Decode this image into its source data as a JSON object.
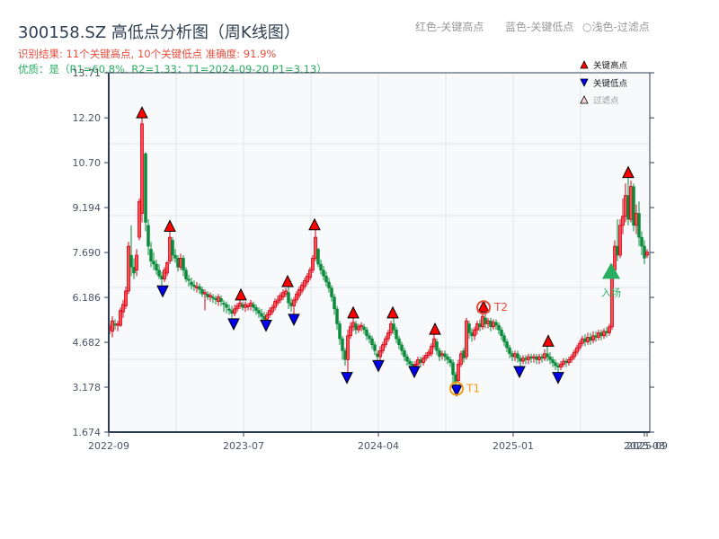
{
  "header": {
    "title": "300158.SZ 高低点分析图（周K线图）",
    "result_line": "识别结果: 11个关键高点, 10个关键低点  准确度: 91.9%",
    "quality_line": "优质：是（R1=60.8%, R2=1.33；T1=2024-09-20 P1=3.13）"
  },
  "top_legend": {
    "red": "红色-关键高点",
    "blue": "蓝色-关键低点",
    "filtered": "○浅色-过滤点"
  },
  "colors": {
    "up": "#d0021b",
    "down": "#0a8a3a",
    "high_marker": "#ff0000",
    "low_marker": "#0000ee",
    "entry": "#27ae60",
    "t1_ring": "#f39c12",
    "t2_ring": "#e74c3c",
    "axis": "#2c3e50",
    "plot_bg": "#f7f9fb",
    "grid": "#e2e6ea"
  },
  "chart_data": {
    "type": "candlestick",
    "title": "300158.SZ 高低点分析图（周K线图）",
    "xlabel": "",
    "ylabel": "",
    "ylim": [
      1.674,
      13.71
    ],
    "yticks": [
      "1.674",
      "3.178",
      "4.682",
      "6.186",
      "7.690",
      "9.194",
      "10.70",
      "12.20",
      "13.71"
    ],
    "xticks": [
      "2022-09",
      "2023-07",
      "2024-04",
      "2025-01",
      "2025-08",
      "2025-09"
    ],
    "grid": true,
    "legend": {
      "position": "top-right",
      "entries": [
        "关键高点",
        "关键低点",
        "过滤点"
      ]
    },
    "key_highs": [
      {
        "x": 158,
        "price": 12.2
      },
      {
        "x": 189,
        "price": 8.4
      },
      {
        "x": 268,
        "price": 6.1
      },
      {
        "x": 320,
        "price": 6.55
      },
      {
        "x": 350,
        "price": 8.45
      },
      {
        "x": 393,
        "price": 5.5
      },
      {
        "x": 437,
        "price": 5.5
      },
      {
        "x": 484,
        "price": 4.95
      },
      {
        "x": 538,
        "price": 5.7
      },
      {
        "x": 610,
        "price": 4.55
      },
      {
        "x": 699,
        "price": 10.2
      }
    ],
    "key_lows": [
      {
        "x": 181,
        "price": 6.45
      },
      {
        "x": 260,
        "price": 5.35
      },
      {
        "x": 296,
        "price": 5.3
      },
      {
        "x": 327,
        "price": 5.5
      },
      {
        "x": 386,
        "price": 3.55
      },
      {
        "x": 421,
        "price": 3.95
      },
      {
        "x": 461,
        "price": 3.75
      },
      {
        "x": 508,
        "price": 3.13
      },
      {
        "x": 578,
        "price": 3.75
      },
      {
        "x": 621,
        "price": 3.55
      }
    ],
    "annotations": [
      {
        "label": "T1",
        "x": 508,
        "price": 3.13,
        "text": "T1=2024-09-20 P1=3.13"
      },
      {
        "label": "T2",
        "x": 538,
        "price": 5.7
      },
      {
        "label": "入场",
        "x": 680,
        "price": 7.05
      }
    ],
    "candles_note": "approximate weekly OHLC read from pixels (x pixel position, open, close, low, high)",
    "candles": [
      [
        122,
        5.1,
        5.2,
        4.95,
        5.3
      ],
      [
        125,
        5.05,
        5.4,
        4.85,
        5.55
      ],
      [
        128,
        5.3,
        5.25,
        5.1,
        5.45
      ],
      [
        131,
        5.25,
        5.3,
        5.05,
        5.4
      ],
      [
        134,
        5.25,
        5.75,
        5.2,
        5.85
      ],
      [
        137,
        5.7,
        5.95,
        5.5,
        6.1
      ],
      [
        140,
        5.9,
        6.4,
        5.8,
        6.55
      ],
      [
        143,
        6.4,
        7.9,
        6.3,
        8.05
      ],
      [
        146,
        7.6,
        7.2,
        6.9,
        8.6
      ],
      [
        149,
        7.2,
        7.0,
        6.8,
        7.5
      ],
      [
        152,
        7.1,
        7.6,
        6.9,
        7.8
      ],
      [
        155,
        8.2,
        9.4,
        8.1,
        9.5
      ],
      [
        158,
        9.0,
        12.0,
        8.7,
        12.2
      ],
      [
        162,
        11.0,
        8.7,
        8.4,
        11.05
      ],
      [
        165,
        8.6,
        7.9,
        7.6,
        8.8
      ],
      [
        168,
        7.8,
        7.4,
        7.2,
        8.05
      ],
      [
        171,
        7.4,
        7.3,
        7.1,
        7.7
      ],
      [
        174,
        7.3,
        7.1,
        6.95,
        7.45
      ],
      [
        177,
        7.1,
        6.9,
        6.8,
        7.3
      ],
      [
        180,
        6.9,
        6.8,
        6.55,
        7.05
      ],
      [
        183,
        6.8,
        7.1,
        6.7,
        7.2
      ],
      [
        186,
        7.0,
        7.35,
        6.9,
        7.4
      ],
      [
        189,
        7.4,
        8.2,
        7.3,
        8.4
      ],
      [
        192,
        8.1,
        7.6,
        7.4,
        8.2
      ],
      [
        195,
        7.6,
        7.5,
        7.35,
        7.8
      ],
      [
        198,
        7.5,
        7.2,
        7.05,
        7.6
      ],
      [
        201,
        7.2,
        7.5,
        7.1,
        7.65
      ],
      [
        204,
        7.5,
        7.1,
        6.9,
        7.6
      ],
      [
        207,
        7.1,
        6.8,
        6.7,
        7.2
      ],
      [
        210,
        6.8,
        6.75,
        6.55,
        6.95
      ],
      [
        213,
        6.7,
        6.6,
        6.45,
        6.85
      ],
      [
        216,
        6.6,
        6.55,
        6.4,
        6.75
      ],
      [
        219,
        6.5,
        6.55,
        6.35,
        6.7
      ],
      [
        222,
        6.55,
        6.45,
        6.3,
        6.65
      ],
      [
        225,
        6.45,
        6.3,
        6.2,
        6.55
      ],
      [
        228,
        6.3,
        6.35,
        5.75,
        6.45
      ],
      [
        231,
        6.3,
        6.2,
        6.1,
        6.4
      ],
      [
        234,
        6.2,
        6.25,
        6.05,
        6.35
      ],
      [
        237,
        6.2,
        6.15,
        6.0,
        6.3
      ],
      [
        240,
        6.15,
        6.1,
        5.95,
        6.25
      ],
      [
        243,
        6.05,
        6.2,
        5.9,
        6.3
      ],
      [
        246,
        6.15,
        6.05,
        5.9,
        6.25
      ],
      [
        249,
        6.0,
        5.95,
        5.7,
        6.1
      ],
      [
        252,
        5.95,
        5.85,
        5.65,
        6.05
      ],
      [
        255,
        5.8,
        5.75,
        5.6,
        5.95
      ],
      [
        258,
        5.75,
        5.65,
        5.5,
        5.9
      ],
      [
        261,
        5.65,
        5.8,
        5.55,
        5.95
      ],
      [
        264,
        5.8,
        5.9,
        5.7,
        6.0
      ],
      [
        267,
        5.9,
        6.0,
        5.8,
        6.1
      ],
      [
        270,
        5.95,
        5.85,
        5.75,
        6.05
      ],
      [
        273,
        5.85,
        5.95,
        5.7,
        6.05
      ],
      [
        276,
        5.9,
        5.9,
        5.75,
        6.0
      ],
      [
        279,
        5.9,
        6.0,
        5.75,
        6.1
      ],
      [
        282,
        5.95,
        5.85,
        5.7,
        6.05
      ],
      [
        285,
        5.85,
        5.75,
        5.6,
        5.95
      ],
      [
        288,
        5.75,
        5.65,
        5.5,
        5.85
      ],
      [
        291,
        5.65,
        5.55,
        5.4,
        5.8
      ],
      [
        294,
        5.55,
        5.45,
        5.3,
        5.7
      ],
      [
        297,
        5.45,
        5.6,
        5.35,
        5.7
      ],
      [
        300,
        5.6,
        5.75,
        5.5,
        5.85
      ],
      [
        303,
        5.7,
        5.85,
        5.6,
        5.95
      ],
      [
        306,
        5.85,
        6.05,
        5.75,
        6.15
      ],
      [
        309,
        6.0,
        6.1,
        5.9,
        6.25
      ],
      [
        312,
        6.1,
        6.25,
        6.0,
        6.35
      ],
      [
        315,
        6.2,
        6.35,
        6.1,
        6.45
      ],
      [
        318,
        6.3,
        6.4,
        6.2,
        6.5
      ],
      [
        321,
        6.35,
        6.0,
        5.8,
        6.55
      ],
      [
        324,
        6.0,
        5.9,
        5.7,
        6.15
      ],
      [
        327,
        5.9,
        6.1,
        5.5,
        6.2
      ],
      [
        330,
        6.1,
        6.3,
        6.0,
        6.4
      ],
      [
        333,
        6.25,
        6.45,
        6.15,
        6.55
      ],
      [
        336,
        6.4,
        6.6,
        6.3,
        6.7
      ],
      [
        339,
        6.55,
        6.75,
        6.45,
        6.85
      ],
      [
        342,
        6.7,
        6.9,
        6.6,
        7.0
      ],
      [
        345,
        6.85,
        7.1,
        6.75,
        7.2
      ],
      [
        348,
        7.1,
        7.5,
        7.0,
        7.6
      ],
      [
        351,
        7.5,
        8.2,
        7.4,
        8.45
      ],
      [
        354,
        7.8,
        7.3,
        7.2,
        7.85
      ],
      [
        357,
        7.3,
        7.1,
        6.95,
        7.45
      ],
      [
        360,
        7.1,
        6.9,
        6.75,
        7.25
      ],
      [
        363,
        6.9,
        6.7,
        6.55,
        7.05
      ],
      [
        366,
        6.7,
        6.5,
        6.35,
        6.85
      ],
      [
        369,
        6.5,
        6.2,
        6.05,
        6.6
      ],
      [
        372,
        6.2,
        5.8,
        5.6,
        6.3
      ],
      [
        375,
        5.8,
        5.3,
        5.1,
        5.9
      ],
      [
        378,
        5.3,
        4.8,
        4.6,
        5.4
      ],
      [
        381,
        4.8,
        4.4,
        4.1,
        4.9
      ],
      [
        384,
        4.4,
        4.1,
        3.9,
        4.5
      ],
      [
        387,
        4.1,
        4.9,
        3.55,
        5.1
      ],
      [
        390,
        4.9,
        5.2,
        4.8,
        5.35
      ],
      [
        393,
        5.2,
        5.35,
        5.05,
        5.5
      ],
      [
        396,
        5.3,
        5.1,
        4.95,
        5.4
      ],
      [
        399,
        5.1,
        5.2,
        5.0,
        5.3
      ],
      [
        402,
        5.2,
        5.25,
        5.05,
        5.35
      ],
      [
        405,
        5.2,
        5.1,
        4.95,
        5.3
      ],
      [
        408,
        5.1,
        4.9,
        4.75,
        5.2
      ],
      [
        411,
        4.9,
        4.8,
        4.65,
        5.0
      ],
      [
        414,
        4.8,
        4.6,
        4.45,
        4.9
      ],
      [
        417,
        4.6,
        4.4,
        4.25,
        4.7
      ],
      [
        420,
        4.3,
        4.2,
        3.95,
        4.4
      ],
      [
        423,
        4.2,
        4.4,
        4.05,
        4.55
      ],
      [
        426,
        4.4,
        4.6,
        4.3,
        4.7
      ],
      [
        429,
        4.6,
        4.8,
        4.5,
        4.9
      ],
      [
        432,
        4.8,
        5.0,
        4.7,
        5.1
      ],
      [
        435,
        5.0,
        5.3,
        4.9,
        5.4
      ],
      [
        438,
        5.3,
        5.1,
        4.95,
        5.5
      ],
      [
        441,
        5.1,
        4.8,
        4.65,
        5.2
      ],
      [
        444,
        4.8,
        4.6,
        4.45,
        4.9
      ],
      [
        447,
        4.6,
        4.4,
        4.25,
        4.7
      ],
      [
        450,
        4.4,
        4.2,
        4.05,
        4.5
      ],
      [
        453,
        4.2,
        4.05,
        3.9,
        4.3
      ],
      [
        456,
        4.05,
        3.95,
        3.8,
        4.15
      ],
      [
        459,
        3.95,
        3.9,
        3.75,
        4.05
      ],
      [
        462,
        3.9,
        3.95,
        3.75,
        4.05
      ],
      [
        465,
        3.95,
        4.1,
        3.85,
        4.2
      ],
      [
        468,
        4.1,
        4.0,
        3.85,
        4.2
      ],
      [
        471,
        4.0,
        4.15,
        3.9,
        4.25
      ],
      [
        474,
        4.15,
        4.25,
        4.05,
        4.35
      ],
      [
        477,
        4.25,
        4.35,
        4.15,
        4.45
      ],
      [
        480,
        4.3,
        4.55,
        4.2,
        4.65
      ],
      [
        483,
        4.55,
        4.8,
        4.45,
        4.95
      ],
      [
        486,
        4.7,
        4.4,
        4.25,
        4.8
      ],
      [
        489,
        4.4,
        4.2,
        4.05,
        4.5
      ],
      [
        492,
        4.25,
        4.3,
        4.1,
        4.4
      ],
      [
        495,
        4.3,
        4.2,
        4.05,
        4.4
      ],
      [
        498,
        4.2,
        4.1,
        3.95,
        4.3
      ],
      [
        501,
        4.1,
        4.0,
        3.85,
        4.2
      ],
      [
        504,
        4.0,
        3.6,
        3.3,
        4.1
      ],
      [
        507,
        3.6,
        3.35,
        3.13,
        3.7
      ],
      [
        510,
        3.4,
        3.95,
        3.3,
        4.1
      ],
      [
        513,
        3.95,
        4.3,
        3.85,
        4.4
      ],
      [
        516,
        4.4,
        4.15,
        4.0,
        4.5
      ],
      [
        519,
        4.2,
        5.4,
        4.1,
        5.5
      ],
      [
        522,
        5.3,
        5.0,
        4.8,
        5.4
      ],
      [
        525,
        5.0,
        4.9,
        4.7,
        5.15
      ],
      [
        528,
        4.9,
        5.1,
        4.75,
        5.2
      ],
      [
        531,
        5.1,
        5.3,
        4.95,
        5.4
      ],
      [
        534,
        5.3,
        5.2,
        5.05,
        5.45
      ],
      [
        537,
        5.2,
        5.55,
        5.1,
        5.7
      ],
      [
        540,
        5.5,
        5.3,
        5.15,
        5.65
      ],
      [
        543,
        5.3,
        5.4,
        5.15,
        5.5
      ],
      [
        546,
        5.4,
        5.2,
        5.05,
        5.5
      ],
      [
        549,
        5.2,
        5.35,
        5.1,
        5.45
      ],
      [
        552,
        5.35,
        5.25,
        5.1,
        5.45
      ],
      [
        555,
        5.25,
        5.1,
        4.95,
        5.35
      ],
      [
        558,
        5.1,
        4.9,
        4.75,
        5.2
      ],
      [
        561,
        4.9,
        4.7,
        4.55,
        5.0
      ],
      [
        564,
        4.7,
        4.5,
        4.35,
        4.8
      ],
      [
        567,
        4.5,
        4.3,
        4.15,
        4.6
      ],
      [
        570,
        4.3,
        4.2,
        4.05,
        4.4
      ],
      [
        573,
        4.2,
        4.3,
        4.05,
        4.4
      ],
      [
        576,
        4.3,
        4.15,
        4.0,
        4.4
      ],
      [
        579,
        4.15,
        4.05,
        3.8,
        4.25
      ],
      [
        582,
        4.05,
        4.15,
        3.95,
        4.25
      ],
      [
        585,
        4.15,
        4.1,
        3.95,
        4.25
      ],
      [
        588,
        4.1,
        4.2,
        3.95,
        4.3
      ],
      [
        591,
        4.2,
        4.15,
        4.0,
        4.3
      ],
      [
        594,
        4.15,
        4.2,
        4.0,
        4.3
      ],
      [
        597,
        4.2,
        4.1,
        3.95,
        4.3
      ],
      [
        600,
        4.1,
        4.2,
        3.95,
        4.3
      ],
      [
        603,
        4.2,
        4.15,
        4.0,
        4.3
      ],
      [
        606,
        4.15,
        4.3,
        4.05,
        4.45
      ],
      [
        609,
        4.3,
        4.2,
        4.05,
        4.55
      ],
      [
        612,
        4.2,
        4.1,
        3.95,
        4.35
      ],
      [
        615,
        4.1,
        4.0,
        3.85,
        4.2
      ],
      [
        618,
        4.0,
        3.9,
        3.75,
        4.1
      ],
      [
        621,
        3.9,
        3.85,
        3.6,
        4.0
      ],
      [
        624,
        3.85,
        3.95,
        3.75,
        4.05
      ],
      [
        627,
        3.95,
        4.05,
        3.85,
        4.15
      ],
      [
        630,
        4.05,
        4.0,
        3.85,
        4.15
      ],
      [
        633,
        4.0,
        4.1,
        3.9,
        4.2
      ],
      [
        636,
        4.1,
        4.2,
        4.0,
        4.3
      ],
      [
        639,
        4.2,
        4.35,
        4.1,
        4.45
      ],
      [
        642,
        4.35,
        4.5,
        4.25,
        4.6
      ],
      [
        645,
        4.5,
        4.65,
        4.4,
        4.75
      ],
      [
        648,
        4.65,
        4.8,
        4.55,
        4.9
      ],
      [
        651,
        4.8,
        4.7,
        4.55,
        4.95
      ],
      [
        654,
        4.7,
        4.85,
        4.6,
        5.0
      ],
      [
        657,
        4.85,
        4.75,
        4.6,
        5.0
      ],
      [
        660,
        4.75,
        4.9,
        4.65,
        5.05
      ],
      [
        663,
        4.9,
        4.85,
        4.7,
        5.05
      ],
      [
        666,
        4.85,
        5.0,
        4.75,
        5.1
      ],
      [
        669,
        5.0,
        4.9,
        4.75,
        5.1
      ],
      [
        672,
        4.9,
        5.05,
        4.8,
        5.15
      ],
      [
        675,
        5.05,
        5.0,
        4.85,
        5.2
      ],
      [
        678,
        5.0,
        5.2,
        4.9,
        5.3
      ],
      [
        681,
        5.2,
        7.1,
        5.1,
        7.3
      ],
      [
        684,
        7.1,
        7.9,
        7.0,
        8.1
      ],
      [
        687,
        7.9,
        7.6,
        7.4,
        8.8
      ],
      [
        690,
        7.6,
        8.6,
        7.5,
        8.8
      ],
      [
        693,
        8.6,
        8.9,
        8.3,
        9.5
      ],
      [
        696,
        8.9,
        9.6,
        8.7,
        10.0
      ],
      [
        699,
        9.6,
        8.8,
        8.6,
        10.2
      ],
      [
        702,
        8.8,
        9.9,
        8.7,
        10.1
      ],
      [
        705,
        9.9,
        8.6,
        8.4,
        10.0
      ],
      [
        708,
        8.6,
        9.0,
        8.3,
        9.3
      ],
      [
        711,
        9.0,
        8.2,
        7.9,
        9.4
      ],
      [
        714,
        8.2,
        7.9,
        7.6,
        8.4
      ],
      [
        717,
        7.9,
        7.5,
        7.3,
        8.1
      ],
      [
        720,
        7.6,
        7.7,
        7.5,
        7.8
      ]
    ]
  }
}
